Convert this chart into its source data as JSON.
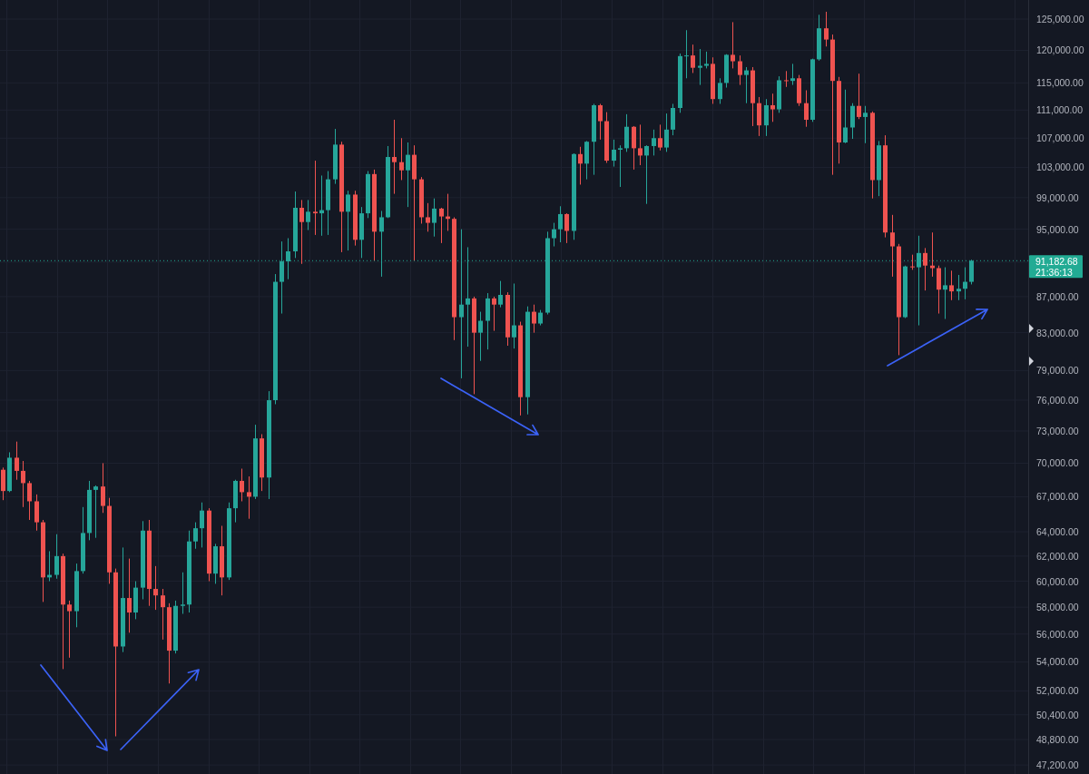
{
  "chart_data": {
    "type": "candlestick",
    "categories": [
      null,
      null,
      null,
      null,
      null,
      null,
      null,
      null,
      null,
      null,
      null,
      null,
      null,
      null,
      null,
      null,
      null,
      null,
      null,
      null,
      null,
      null,
      null,
      null,
      null,
      null,
      null,
      null,
      null,
      null,
      null,
      null,
      null,
      null,
      null,
      null,
      null,
      null,
      null,
      null,
      null,
      null,
      null,
      null,
      null,
      null,
      null,
      null,
      null,
      null,
      null,
      null,
      null,
      null,
      null,
      null,
      null,
      null,
      null,
      null,
      null,
      null,
      null,
      null,
      null,
      null,
      null,
      null,
      null,
      null,
      null,
      null,
      null,
      null,
      null,
      null,
      null,
      null,
      null,
      null,
      null,
      null,
      null,
      null,
      null,
      null,
      null,
      null,
      null,
      null,
      null,
      null,
      null,
      null,
      null,
      null,
      null,
      null,
      null,
      null,
      null,
      null,
      null,
      null,
      null,
      null,
      null,
      null,
      null,
      null,
      null,
      null,
      null,
      null,
      null,
      null,
      null,
      null,
      null,
      null,
      null,
      null,
      null,
      null,
      null,
      null,
      null,
      null,
      null,
      null,
      null,
      null,
      null,
      null,
      null,
      null,
      null,
      null,
      null,
      null,
      null,
      null,
      null,
      null,
      null,
      null,
      null,
      null,
      null,
      null,
      null,
      null,
      null,
      null,
      null
    ],
    "ohlc": [
      [
        69400,
        69600,
        66700,
        67500
      ],
      [
        67500,
        71000,
        67400,
        70500
      ],
      [
        70500,
        72000,
        68500,
        69300
      ],
      [
        69300,
        70200,
        66100,
        68200
      ],
      [
        68200,
        68400,
        65000,
        66600
      ],
      [
        66600,
        67200,
        64100,
        64800
      ],
      [
        64800,
        65000,
        58400,
        60300
      ],
      [
        60300,
        62400,
        60000,
        60500
      ],
      [
        60500,
        63800,
        60200,
        62000
      ],
      [
        62000,
        62200,
        53500,
        58200
      ],
      [
        58200,
        58500,
        54300,
        57700
      ],
      [
        57700,
        61400,
        56500,
        60800
      ],
      [
        60800,
        66100,
        60600,
        63900
      ],
      [
        63900,
        68400,
        63300,
        67600
      ],
      [
        67600,
        68000,
        63500,
        67900
      ],
      [
        67900,
        70000,
        65600,
        66200
      ],
      [
        66200,
        66900,
        59800,
        60700
      ],
      [
        60700,
        61000,
        49000,
        55100
      ],
      [
        55100,
        62700,
        54700,
        58700
      ],
      [
        58700,
        61800,
        56100,
        57600
      ],
      [
        57600,
        60000,
        57100,
        59500
      ],
      [
        59500,
        64900,
        58600,
        64100
      ],
      [
        64100,
        65000,
        58100,
        59400
      ],
      [
        59400,
        61200,
        57800,
        58900
      ],
      [
        58900,
        59400,
        55600,
        58000
      ],
      [
        58000,
        58300,
        52500,
        54800
      ],
      [
        54800,
        58500,
        54600,
        58100
      ],
      [
        58100,
        60700,
        57500,
        58200
      ],
      [
        58200,
        64100,
        57600,
        63200
      ],
      [
        63200,
        64800,
        62600,
        64300
      ],
      [
        64300,
        66500,
        62700,
        65800
      ],
      [
        65800,
        66000,
        60000,
        60600
      ],
      [
        60600,
        63000,
        59800,
        62800
      ],
      [
        62800,
        64500,
        58900,
        60300
      ],
      [
        60300,
        66500,
        60100,
        66000
      ],
      [
        66000,
        68500,
        64800,
        68400
      ],
      [
        68400,
        69500,
        66600,
        67400
      ],
      [
        67400,
        68800,
        65100,
        67000
      ],
      [
        67000,
        73600,
        66800,
        72300
      ],
      [
        72300,
        72700,
        67500,
        68700
      ],
      [
        68700,
        76900,
        66800,
        76000
      ],
      [
        76000,
        89600,
        75600,
        88700
      ],
      [
        88700,
        93500,
        85100,
        91100
      ],
      [
        91100,
        93900,
        89000,
        92300
      ],
      [
        92300,
        99800,
        91500,
        97700
      ],
      [
        97700,
        98700,
        90800,
        95900
      ],
      [
        95900,
        98700,
        94900,
        97200
      ],
      [
        97200,
        103900,
        94300,
        97000
      ],
      [
        97000,
        101900,
        94200,
        97400
      ],
      [
        97400,
        102500,
        94300,
        101400
      ],
      [
        101400,
        108300,
        100800,
        106100
      ],
      [
        106100,
        106500,
        92200,
        97200
      ],
      [
        97200,
        99900,
        92400,
        99400
      ],
      [
        99400,
        99900,
        93000,
        93700
      ],
      [
        93700,
        97800,
        91500,
        97000
      ],
      [
        97000,
        102500,
        96400,
        102100
      ],
      [
        102100,
        102700,
        91200,
        94700
      ],
      [
        94700,
        97300,
        89300,
        96500
      ],
      [
        96500,
        105900,
        96400,
        104400
      ],
      [
        104400,
        109600,
        99500,
        103700
      ],
      [
        103700,
        107000,
        101300,
        102600
      ],
      [
        102600,
        106400,
        97800,
        104700
      ],
      [
        104700,
        106000,
        91200,
        101400
      ],
      [
        101400,
        101700,
        95700,
        96500
      ],
      [
        96500,
        98300,
        94700,
        95800
      ],
      [
        95800,
        98900,
        94100,
        97600
      ],
      [
        97600,
        97700,
        93300,
        96600
      ],
      [
        96600,
        99500,
        94800,
        96300
      ],
      [
        96300,
        96500,
        82200,
        84700
      ],
      [
        84700,
        95000,
        78200,
        86100
      ],
      [
        86100,
        92800,
        81500,
        86800
      ],
      [
        86800,
        87000,
        76600,
        83000
      ],
      [
        83000,
        85300,
        80000,
        84300
      ],
      [
        84300,
        87400,
        81200,
        86800
      ],
      [
        86800,
        87000,
        83200,
        86100
      ],
      [
        86100,
        88800,
        85800,
        87200
      ],
      [
        87200,
        87500,
        81600,
        82500
      ],
      [
        82500,
        88500,
        81300,
        83800
      ],
      [
        83800,
        84200,
        74500,
        76300
      ],
      [
        76300,
        85900,
        74600,
        85300
      ],
      [
        85300,
        86100,
        83000,
        84000
      ],
      [
        84000,
        85500,
        83800,
        85200
      ],
      [
        85200,
        94700,
        85000,
        93900
      ],
      [
        93900,
        95800,
        92900,
        95000
      ],
      [
        95000,
        97900,
        93400,
        96900
      ],
      [
        96900,
        97000,
        93300,
        94800
      ],
      [
        94800,
        104900,
        93700,
        104800
      ],
      [
        104800,
        105800,
        100700,
        103500
      ],
      [
        103500,
        106600,
        101400,
        106500
      ],
      [
        106500,
        111900,
        102000,
        111700
      ],
      [
        111700,
        111900,
        106800,
        109400
      ],
      [
        109400,
        110700,
        103600,
        103900
      ],
      [
        103900,
        106800,
        103100,
        105400
      ],
      [
        105400,
        106000,
        100400,
        105600
      ],
      [
        105600,
        110400,
        105100,
        108600
      ],
      [
        108600,
        108700,
        102700,
        105600
      ],
      [
        105600,
        108900,
        103300,
        104600
      ],
      [
        104600,
        106000,
        98200,
        105900
      ],
      [
        105900,
        108200,
        104600,
        107000
      ],
      [
        107000,
        108900,
        105300,
        105700
      ],
      [
        105700,
        110500,
        105100,
        108200
      ],
      [
        108200,
        111900,
        107400,
        111300
      ],
      [
        111300,
        119500,
        110600,
        119100
      ],
      [
        119100,
        123200,
        115700,
        119200
      ],
      [
        119200,
        120900,
        116500,
        117300
      ],
      [
        117300,
        120200,
        114700,
        117600
      ],
      [
        117600,
        119800,
        117200,
        117900
      ],
      [
        117900,
        118900,
        111900,
        112600
      ],
      [
        112600,
        115700,
        111900,
        115000
      ],
      [
        115000,
        119400,
        114300,
        119300
      ],
      [
        119300,
        124500,
        117200,
        118300
      ],
      [
        118300,
        119200,
        114700,
        116200
      ],
      [
        116200,
        117400,
        112000,
        116900
      ],
      [
        116900,
        117400,
        108700,
        112000
      ],
      [
        112000,
        112900,
        107300,
        108800
      ],
      [
        108800,
        112600,
        107300,
        111700
      ],
      [
        111700,
        113400,
        109300,
        111100
      ],
      [
        111100,
        116000,
        110600,
        115400
      ],
      [
        115400,
        116800,
        114400,
        115300
      ],
      [
        115300,
        117900,
        114700,
        115700
      ],
      [
        115700,
        116200,
        111600,
        112000
      ],
      [
        112000,
        113900,
        108600,
        109600
      ],
      [
        109600,
        118700,
        109300,
        118600
      ],
      [
        118600,
        125700,
        118400,
        123500
      ],
      [
        123500,
        126200,
        120600,
        121700
      ],
      [
        121700,
        122500,
        102000,
        115300
      ],
      [
        115300,
        115900,
        103500,
        106400
      ],
      [
        106400,
        114000,
        106300,
        108500
      ],
      [
        108500,
        112000,
        106900,
        111600
      ],
      [
        111600,
        116400,
        109700,
        110000
      ],
      [
        110000,
        111600,
        106300,
        110600
      ],
      [
        110600,
        110800,
        98900,
        101300
      ],
      [
        101300,
        106600,
        99200,
        106000
      ],
      [
        106000,
        107400,
        94000,
        94600
      ],
      [
        94600,
        96800,
        89300,
        92900
      ],
      [
        92900,
        93200,
        80600,
        84700
      ],
      [
        84700,
        90600,
        84600,
        90500
      ],
      [
        90500,
        91900,
        90100,
        90400
      ],
      [
        90400,
        94200,
        83800,
        92100
      ],
      [
        92100,
        92700,
        87700,
        90600
      ],
      [
        90600,
        94600,
        89300,
        90300
      ],
      [
        90300,
        90600,
        85100,
        87800
      ],
      [
        87800,
        90400,
        84500,
        88300
      ],
      [
        88300,
        90000,
        86600,
        87600
      ],
      [
        87600,
        89500,
        86600,
        87900
      ],
      [
        87900,
        90400,
        86700,
        88700
      ],
      [
        88700,
        91300,
        88400,
        91182.68
      ],
      null,
      null,
      null,
      null,
      null,
      null,
      null,
      null
    ],
    "colors": [
      "#ef5350",
      "#26a69a",
      "#ef5350",
      "#ef5350",
      "#ef5350",
      "#ef5350",
      "#ef5350",
      "#26a69a",
      "#26a69a",
      "#ef5350",
      "#ef5350",
      "#26a69a",
      "#26a69a",
      "#26a69a",
      "#26a69a",
      "#ef5350",
      "#ef5350",
      "#ef5350",
      "#26a69a",
      "#ef5350",
      "#26a69a",
      "#26a69a",
      "#ef5350",
      "#ef5350",
      "#ef5350",
      "#ef5350",
      "#26a69a",
      "#26a69a",
      "#26a69a",
      "#26a69a",
      "#26a69a",
      "#ef5350",
      "#26a69a",
      "#ef5350",
      "#26a69a",
      "#26a69a",
      "#ef5350",
      "#ef5350",
      "#26a69a",
      "#ef5350",
      "#26a69a",
      "#26a69a",
      "#26a69a",
      "#26a69a",
      "#26a69a",
      "#ef5350",
      "#26a69a",
      "#ef5350",
      "#26a69a",
      "#26a69a",
      "#26a69a",
      "#ef5350",
      "#26a69a",
      "#ef5350",
      "#26a69a",
      "#26a69a",
      "#ef5350",
      "#26a69a",
      "#26a69a",
      "#ef5350",
      "#ef5350",
      "#26a69a",
      "#ef5350",
      "#ef5350",
      "#ef5350",
      "#26a69a",
      "#ef5350",
      "#ef5350",
      "#ef5350",
      "#26a69a",
      "#26a69a",
      "#ef5350",
      "#26a69a",
      "#26a69a",
      "#ef5350",
      "#26a69a",
      "#ef5350",
      "#26a69a",
      "#ef5350",
      "#26a69a",
      "#ef5350",
      "#26a69a",
      "#26a69a",
      "#26a69a",
      "#26a69a",
      "#ef5350",
      "#26a69a",
      "#ef5350",
      "#26a69a",
      "#26a69a",
      "#ef5350",
      "#ef5350",
      "#26a69a",
      "#26a69a",
      "#26a69a",
      "#ef5350",
      "#ef5350",
      "#26a69a",
      "#26a69a",
      "#ef5350",
      "#26a69a",
      "#26a69a",
      "#26a69a",
      "#26a69a",
      "#ef5350",
      "#26a69a",
      "#26a69a",
      "#ef5350",
      "#26a69a",
      "#26a69a",
      "#ef5350",
      "#ef5350",
      "#26a69a",
      "#ef5350",
      "#ef5350",
      "#26a69a",
      "#ef5350",
      "#26a69a",
      "#ef5350",
      "#26a69a",
      "#ef5350",
      "#ef5350",
      "#26a69a",
      "#26a69a",
      "#ef5350",
      "#ef5350",
      "#ef5350",
      "#26a69a",
      "#26a69a",
      "#ef5350",
      "#26a69a",
      "#ef5350",
      "#26a69a",
      "#ef5350",
      "#ef5350",
      "#ef5350",
      "#26a69a",
      "#ef5350",
      "#26a69a",
      "#ef5350",
      "#ef5350",
      "#ef5350",
      "#26a69a",
      "#ef5350",
      "#26a69a",
      "#26a69a",
      "#26a69a",
      null,
      null,
      null,
      null,
      null,
      null,
      null,
      null
    ],
    "ylim": [
      46650,
      128150
    ],
    "yticks": [
      {
        "value": 125000,
        "label": "125,000.00"
      },
      {
        "value": 120000,
        "label": "120,000.00"
      },
      {
        "value": 115000,
        "label": "115,000.00"
      },
      {
        "value": 111000,
        "label": "111,000.00"
      },
      {
        "value": 107000,
        "label": "107,000.00"
      },
      {
        "value": 103000,
        "label": "103,000.00"
      },
      {
        "value": 99000,
        "label": "99,000.00"
      },
      {
        "value": 95000,
        "label": "95,000.00"
      },
      {
        "value": 91000,
        "label": null
      },
      {
        "value": 87000,
        "label": "87,000.00"
      },
      {
        "value": 83000,
        "label": "83,000.00"
      },
      {
        "value": 79000,
        "label": "79,000.00"
      },
      {
        "value": 76000,
        "label": "76,000.00"
      },
      {
        "value": 73000,
        "label": "73,000.00"
      },
      {
        "value": 70000,
        "label": "70,000.00"
      },
      {
        "value": 67000,
        "label": "67,000.00"
      },
      {
        "value": 64000,
        "label": "64,000.00"
      },
      {
        "value": 62000,
        "label": "62,000.00"
      },
      {
        "value": 60000,
        "label": "60,000.00"
      },
      {
        "value": 58000,
        "label": "58,000.00"
      },
      {
        "value": 56000,
        "label": "56,000.00"
      },
      {
        "value": 54000,
        "label": "54,000.00"
      },
      {
        "value": 52000,
        "label": "52,000.00"
      },
      {
        "value": 50400,
        "label": "50,400.00"
      },
      {
        "value": 48800,
        "label": "48,800.00"
      },
      {
        "value": 47200,
        "label": "47,200.00"
      }
    ],
    "log": true,
    "grid": true,
    "tick_labels": "y",
    "ref_lines": [
      {
        "axis": "y",
        "value": 91182.68,
        "label": "91,182.68",
        "color": "#22ab94",
        "line_style": "dotted"
      }
    ],
    "annotations": [
      "21:36:13"
    ]
  }
}
